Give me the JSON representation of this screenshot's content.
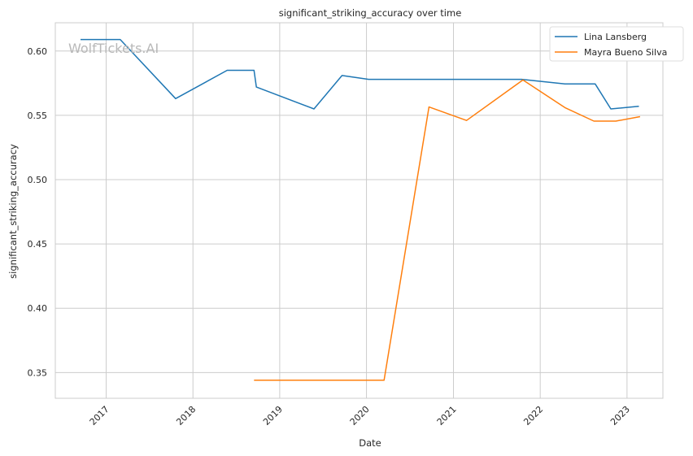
{
  "watermark": "WolfTickets.AI",
  "chart_data": {
    "type": "line",
    "title": "significant_striking_accuracy over time",
    "xlabel": "Date",
    "ylabel": "significant_striking_accuracy",
    "xlim": [
      "2016-06-01",
      "2023-06-01"
    ],
    "ylim": [
      0.33,
      0.622
    ],
    "x_ticks": [
      "2017",
      "2018",
      "2019",
      "2020",
      "2021",
      "2022",
      "2023"
    ],
    "y_ticks": [
      "0.35",
      "0.40",
      "0.45",
      "0.50",
      "0.55",
      "0.60"
    ],
    "grid": true,
    "legend_position": "top-right",
    "series": [
      {
        "name": "Lina Lansberg",
        "color": "#1f77b4",
        "points": [
          [
            "2016-09-15",
            0.609
          ],
          [
            "2017-03-01",
            0.609
          ],
          [
            "2017-10-20",
            0.563
          ],
          [
            "2018-05-25",
            0.585
          ],
          [
            "2018-09-15",
            0.585
          ],
          [
            "2018-09-25",
            0.572
          ],
          [
            "2019-05-25",
            0.555
          ],
          [
            "2019-09-20",
            0.581
          ],
          [
            "2020-01-10",
            0.578
          ],
          [
            "2021-10-15",
            0.578
          ],
          [
            "2022-04-15",
            0.5745
          ],
          [
            "2022-08-20",
            0.5745
          ],
          [
            "2022-10-25",
            0.555
          ],
          [
            "2023-02-20",
            0.557
          ]
        ]
      },
      {
        "name": "Mayra Bueno Silva",
        "color": "#ff7f0e",
        "points": [
          [
            "2018-09-15",
            0.344
          ],
          [
            "2020-03-15",
            0.344
          ],
          [
            "2020-09-20",
            0.5565
          ],
          [
            "2021-02-25",
            0.546
          ],
          [
            "2021-10-20",
            0.5775
          ],
          [
            "2022-04-15",
            0.556
          ],
          [
            "2022-08-15",
            0.5455
          ],
          [
            "2022-11-15",
            0.5455
          ],
          [
            "2023-02-25",
            0.549
          ]
        ]
      }
    ]
  }
}
